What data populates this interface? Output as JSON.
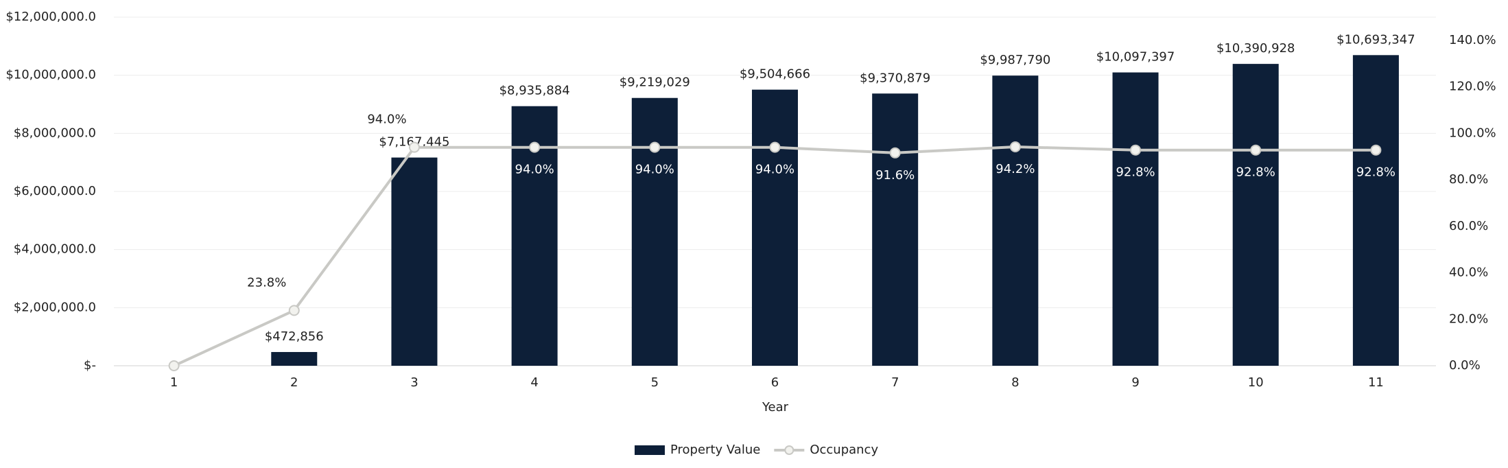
{
  "chart_data": {
    "type": "bar-line",
    "x_label": "Year",
    "categories": [
      "1",
      "2",
      "3",
      "4",
      "5",
      "6",
      "7",
      "8",
      "9",
      "10",
      "11"
    ],
    "series": [
      {
        "name": "Property Value",
        "type": "bar",
        "color": "#0d1f38",
        "values": [
          0,
          472856,
          7167445,
          8935884,
          9219029,
          9504666,
          9370879,
          9987790,
          10097397,
          10390928,
          10693347
        ],
        "value_labels": [
          null,
          "$472,856",
          "$7,167,445",
          "$8,935,884",
          "$9,219,029",
          "$9,504,666",
          "$9,370,879",
          "$9,987,790",
          "$10,097,397",
          "$10,390,928",
          "$10,693,347"
        ]
      },
      {
        "name": "Occupancy",
        "type": "line",
        "axis": "y2",
        "color": "#c9c9c5",
        "values": [
          0,
          23.8,
          94.0,
          94.0,
          94.0,
          94.0,
          91.6,
          94.2,
          92.8,
          92.8,
          92.8
        ],
        "value_labels": [
          null,
          "23.8%",
          "94.0%",
          "94.0%",
          "94.0%",
          "94.0%",
          "91.6%",
          "94.2%",
          "92.8%",
          "92.8%",
          "92.8%"
        ]
      }
    ],
    "ylim": [
      0,
      12000000
    ],
    "yticks": [
      {
        "value": 0,
        "label": "$-"
      },
      {
        "value": 2000000,
        "label": "$2,000,000.0"
      },
      {
        "value": 4000000,
        "label": "$4,000,000.0"
      },
      {
        "value": 6000000,
        "label": "$6,000,000.0"
      },
      {
        "value": 8000000,
        "label": "$8,000,000.0"
      },
      {
        "value": 10000000,
        "label": "$10,000,000.0"
      },
      {
        "value": 12000000,
        "label": "$12,000,000.0"
      }
    ],
    "y2lim": [
      0,
      150
    ],
    "y2ticks": [
      {
        "value": 0,
        "label": "0.0%"
      },
      {
        "value": 20,
        "label": "20.0%"
      },
      {
        "value": 40,
        "label": "40.0%"
      },
      {
        "value": 60,
        "label": "60.0%"
      },
      {
        "value": 80,
        "label": "80.0%"
      },
      {
        "value": 100,
        "label": "100.0%"
      },
      {
        "value": 120,
        "label": "120.0%"
      },
      {
        "value": 140,
        "label": "140.0%"
      }
    ],
    "grid": true,
    "legend": "bottom"
  }
}
